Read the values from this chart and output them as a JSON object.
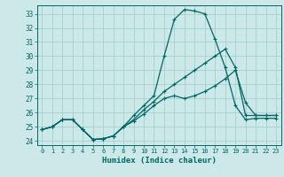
{
  "xlabel": "Humidex (Indice chaleur)",
  "bg_color": "#cce8e8",
  "line_color": "#006666",
  "grid_color": "#99cccc",
  "xlim": [
    -0.5,
    23.5
  ],
  "ylim": [
    23.7,
    33.6
  ],
  "yticks": [
    24,
    25,
    26,
    27,
    28,
    29,
    30,
    31,
    32,
    33
  ],
  "xticks": [
    0,
    1,
    2,
    3,
    4,
    5,
    6,
    7,
    8,
    9,
    10,
    11,
    12,
    13,
    14,
    15,
    16,
    17,
    18,
    19,
    20,
    21,
    22,
    23
  ],
  "line1_x": [
    0,
    1,
    2,
    3,
    4,
    5,
    6,
    7,
    8,
    9,
    10,
    11,
    12,
    13,
    14,
    15,
    16,
    17,
    18,
    19,
    20,
    21,
    22,
    23
  ],
  "line1_y": [
    24.8,
    25.0,
    25.5,
    25.5,
    24.8,
    24.1,
    24.15,
    24.35,
    25.0,
    25.4,
    25.9,
    26.5,
    27.0,
    27.2,
    27.0,
    27.2,
    27.5,
    27.9,
    28.4,
    29.0,
    26.7,
    25.8,
    25.8,
    25.8
  ],
  "line2_x": [
    0,
    1,
    2,
    3,
    4,
    5,
    6,
    7,
    8,
    9,
    10,
    11,
    12,
    13,
    14,
    15,
    16,
    17,
    18,
    19,
    20,
    21,
    22,
    23
  ],
  "line2_y": [
    24.8,
    25.0,
    25.5,
    25.5,
    24.8,
    24.1,
    24.15,
    24.35,
    25.0,
    25.8,
    26.5,
    27.2,
    30.0,
    32.6,
    33.3,
    33.2,
    33.0,
    31.2,
    29.2,
    26.5,
    25.5,
    25.6,
    25.6,
    25.6
  ],
  "line3_x": [
    0,
    1,
    2,
    3,
    4,
    5,
    6,
    7,
    8,
    9,
    10,
    11,
    12,
    13,
    14,
    15,
    16,
    17,
    18,
    19,
    20,
    21,
    22,
    23
  ],
  "line3_y": [
    24.8,
    25.0,
    25.5,
    25.5,
    24.8,
    24.1,
    24.15,
    24.35,
    25.0,
    25.5,
    26.2,
    26.8,
    27.5,
    28.0,
    28.5,
    29.0,
    29.5,
    30.0,
    30.5,
    29.2,
    25.8,
    25.8,
    25.8,
    25.8
  ]
}
